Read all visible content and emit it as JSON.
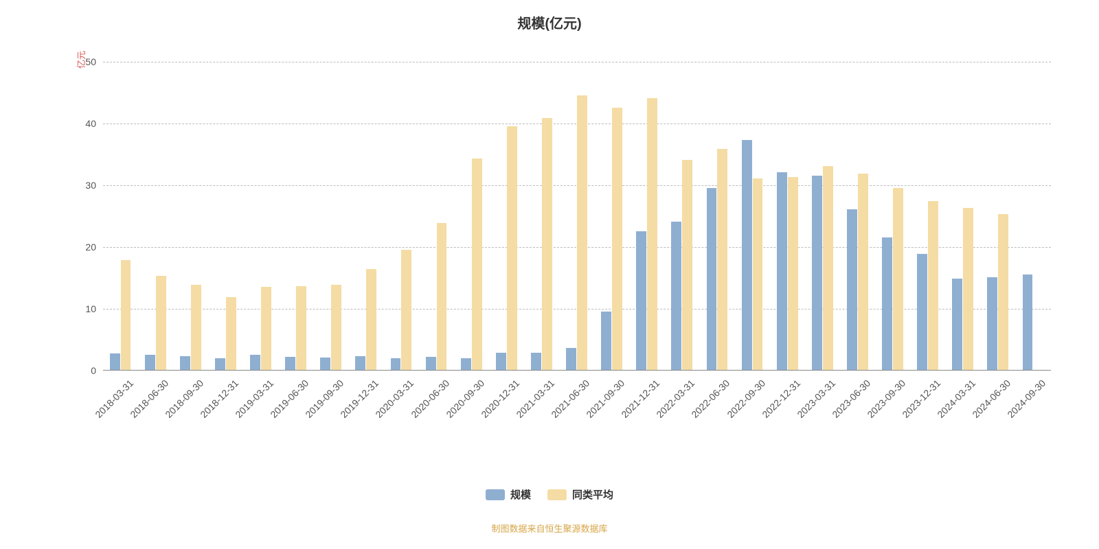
{
  "chart": {
    "type": "bar",
    "title": "规模(亿元)",
    "title_fontsize": 20,
    "ylabel": "亿元",
    "ylabel_color": "#d9534f",
    "background_color": "#ffffff",
    "grid_color": "#bbbbbb",
    "grid_dash": true,
    "axis_color": "#888888",
    "tick_fontsize": 14,
    "ylim": [
      0,
      50
    ],
    "ytick_step": 10,
    "categories": [
      "2018-03-31",
      "2018-06-30",
      "2018-09-30",
      "2018-12-31",
      "2019-03-31",
      "2019-06-30",
      "2019-09-30",
      "2019-12-31",
      "2020-03-31",
      "2020-06-30",
      "2020-09-30",
      "2020-12-31",
      "2021-03-31",
      "2021-06-30",
      "2021-09-30",
      "2021-12-31",
      "2022-03-31",
      "2022-06-30",
      "2022-09-30",
      "2022-12-31",
      "2023-03-31",
      "2023-06-30",
      "2023-09-30",
      "2023-12-31",
      "2024-03-31",
      "2024-06-30",
      "2024-09-30"
    ],
    "xtick_rotation": -45,
    "series": [
      {
        "name": "规模",
        "color": "#8fafd1",
        "values": [
          2.7,
          2.5,
          2.2,
          1.9,
          2.4,
          2.1,
          2.0,
          2.2,
          1.9,
          2.1,
          1.9,
          2.8,
          2.8,
          3.6,
          9.5,
          22.5,
          24.0,
          29.5,
          37.2,
          32.0,
          31.5,
          26.0,
          21.5,
          18.8,
          14.8,
          15.0,
          15.5
        ]
      },
      {
        "name": "同类平均",
        "color": "#f4dca4",
        "values": [
          17.8,
          15.2,
          13.8,
          11.8,
          13.4,
          13.6,
          13.8,
          16.3,
          19.5,
          23.8,
          34.2,
          39.5,
          40.8,
          44.5,
          42.5,
          44.0,
          34.0,
          35.8,
          31.0,
          31.2,
          33.0,
          31.8,
          29.5,
          27.3,
          26.2,
          25.2,
          0
        ]
      }
    ],
    "bar_group_width_ratio": 0.62
  },
  "legend": {
    "items": [
      {
        "label": "规模",
        "color": "#8fafd1"
      },
      {
        "label": "同类平均",
        "color": "#f4dca4"
      }
    ]
  },
  "footer": "制图数据来自恒生聚源数据库",
  "footer_color": "#d6a548"
}
